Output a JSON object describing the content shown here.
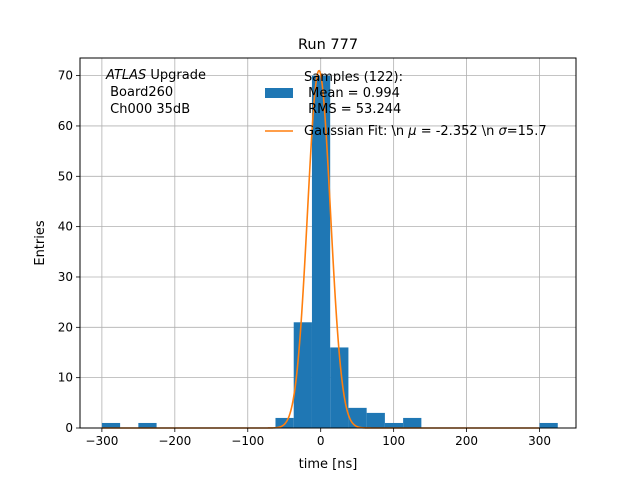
{
  "chart_data": {
    "type": "bar",
    "title": "Run 777",
    "xlabel": "time [ns]",
    "ylabel": "Entries",
    "xlim": [
      -330,
      350
    ],
    "ylim": [
      0,
      73.5
    ],
    "grid": true,
    "xticks": [
      -300,
      -200,
      -100,
      0,
      100,
      200,
      300
    ],
    "xtick_labels": [
      "−300",
      "−200",
      "−100",
      "0",
      "100",
      "200",
      "300"
    ],
    "yticks": [
      0,
      10,
      20,
      30,
      40,
      50,
      60,
      70
    ],
    "ytick_labels": [
      "0",
      "10",
      "20",
      "30",
      "40",
      "50",
      "60",
      "70"
    ],
    "annotation": {
      "line1_italic": "ATLAS",
      "line1_rest": " Upgrade",
      "line2": " Board260",
      "line3": " Ch000 35dB"
    },
    "legend": {
      "placement": "top-center",
      "hist_label_lines": [
        "Samples (122):",
        " Mean = 0.994",
        " RMS = 53.244"
      ],
      "fit_label_prefix": "Gaussian Fit: \\n ",
      "fit_label_mu_symbol": "μ",
      "fit_label_mu_value": " = -2.352 \\n ",
      "fit_label_sigma_symbol": "σ",
      "fit_label_sigma_value": "=15.7"
    },
    "series": [
      {
        "kind": "histogram",
        "color": "#1f77b4",
        "bins": [
          {
            "x0": -300,
            "x1": -275,
            "count": 1
          },
          {
            "x0": -250,
            "x1": -225,
            "count": 1
          },
          {
            "x0": -62,
            "x1": -37,
            "count": 2
          },
          {
            "x0": -37,
            "x1": -12,
            "count": 21
          },
          {
            "x0": -12,
            "x1": 13,
            "count": 70
          },
          {
            "x0": 13,
            "x1": 38,
            "count": 16
          },
          {
            "x0": 38,
            "x1": 63,
            "count": 4
          },
          {
            "x0": 63,
            "x1": 88,
            "count": 3
          },
          {
            "x0": 88,
            "x1": 113,
            "count": 1
          },
          {
            "x0": 113,
            "x1": 138,
            "count": 2
          },
          {
            "x0": 300,
            "x1": 325,
            "count": 1
          }
        ]
      },
      {
        "kind": "gaussian",
        "color": "#ff7f0e",
        "amplitude": 71,
        "mu": -2.352,
        "sigma": 15.7,
        "x_range": [
          -300,
          300
        ]
      }
    ]
  }
}
